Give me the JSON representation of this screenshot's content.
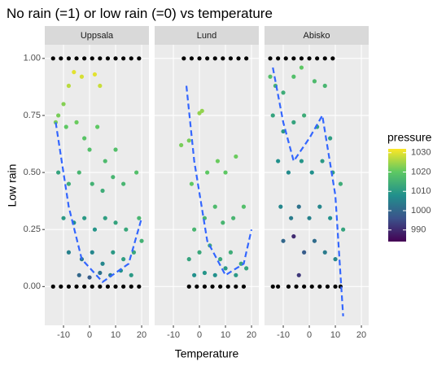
{
  "title": "No rain (=1) or low rain (=0) vs temperature",
  "x_label": "Temperature",
  "y_label": "Low rain",
  "colorbar": {
    "title": "pressure",
    "lim": [
      984,
      1032
    ],
    "ticks": [
      990,
      1000,
      1010,
      1020,
      1030
    ],
    "colors": [
      "#440154",
      "#3b528b",
      "#21908c",
      "#5dc863",
      "#fde725"
    ],
    "na_color": "#000000"
  },
  "trend_color": "#3366ff",
  "chart_data": [
    {
      "type": "scatter",
      "title": "Uppsala",
      "xlim": [
        -17.2,
        22.8
      ],
      "ylim": [
        -0.17,
        1.06
      ],
      "xticks": [
        -10,
        0,
        10,
        20
      ],
      "yticks": [
        {
          "value": 0,
          "label": "0.00"
        },
        {
          "value": 0.25,
          "label": "0.25"
        },
        {
          "value": 0.5,
          "label": "0.50"
        },
        {
          "value": 0.75,
          "label": "0.75"
        },
        {
          "value": 1,
          "label": "1.00"
        }
      ],
      "x": [
        -13,
        -12,
        -10,
        -8,
        -6,
        -3,
        2,
        4,
        -9,
        -5,
        -2,
        0,
        3,
        6,
        10,
        -12,
        -8,
        -4,
        1,
        5,
        9,
        13,
        18,
        -10,
        -6,
        -2,
        2,
        6,
        10,
        14,
        19,
        -8,
        -3,
        1,
        5,
        9,
        13,
        17,
        -4,
        0,
        4,
        8,
        12,
        16,
        20,
        -14,
        -11,
        -8,
        -5,
        -2,
        1,
        4,
        7,
        10,
        13,
        16,
        19,
        -14,
        -11,
        -8,
        -5,
        -2,
        1,
        4,
        7,
        10,
        13,
        16,
        19
      ],
      "y": [
        0.72,
        0.75,
        0.8,
        0.88,
        0.94,
        0.92,
        0.93,
        0.88,
        0.7,
        0.72,
        0.65,
        0.6,
        0.7,
        0.55,
        0.6,
        0.5,
        0.45,
        0.5,
        0.45,
        0.42,
        0.48,
        0.45,
        0.5,
        0.3,
        0.28,
        0.3,
        0.25,
        0.3,
        0.28,
        0.25,
        0.3,
        0.15,
        0.12,
        0.15,
        0.1,
        0.15,
        0.12,
        0.15,
        0.05,
        0.04,
        0.06,
        0.05,
        0.07,
        0.05,
        0.2,
        1,
        1,
        1,
        1,
        1,
        1,
        1,
        1,
        1,
        1,
        1,
        1,
        0,
        0,
        0,
        0,
        0,
        0,
        0,
        0,
        0,
        0,
        0,
        0
      ],
      "pressure": [
        1022,
        1022,
        1023,
        1027,
        1030,
        1029,
        1030,
        1028,
        1020,
        1021,
        1019,
        1018,
        1020,
        1017,
        1018,
        1012,
        1014,
        1016,
        1015,
        1014,
        1016,
        1016,
        1018,
        1010,
        1008,
        1010,
        1009,
        1011,
        1012,
        1013,
        1016,
        1005,
        1004,
        1006,
        1006,
        1010,
        1011,
        1013,
        1000,
        998,
        1002,
        1004,
        1008,
        1010,
        1015,
        null,
        null,
        null,
        null,
        null,
        null,
        null,
        null,
        null,
        null,
        null,
        null,
        null,
        null,
        null,
        null,
        null,
        null,
        null,
        null,
        null,
        null,
        null,
        null
      ],
      "trend_x": [
        -13,
        -8,
        -3,
        5,
        15,
        20
      ],
      "trend_y": [
        0.72,
        0.35,
        0.12,
        0.02,
        0.1,
        0.3
      ]
    },
    {
      "type": "scatter",
      "title": "Lund",
      "xlim": [
        -17.2,
        22.8
      ],
      "ylim": [
        -0.17,
        1.06
      ],
      "xticks": [
        -10,
        0,
        10,
        20
      ],
      "yticks": [
        0,
        0.25,
        0.5,
        0.75,
        1
      ],
      "x": [
        -7,
        -4,
        0,
        1,
        -3,
        3,
        7,
        10,
        14,
        -2,
        2,
        6,
        9,
        13,
        17,
        -4,
        0,
        4,
        8,
        12,
        16,
        -2,
        2,
        6,
        10,
        14,
        18,
        -6,
        -3,
        0,
        3,
        6,
        9,
        12,
        15,
        18,
        -4,
        -1,
        2,
        5,
        8,
        11,
        14,
        17
      ],
      "y": [
        0.62,
        0.64,
        0.76,
        0.77,
        0.45,
        0.5,
        0.55,
        0.5,
        0.57,
        0.25,
        0.3,
        0.35,
        0.28,
        0.3,
        0.35,
        0.12,
        0.15,
        0.18,
        0.12,
        0.15,
        0.1,
        0.05,
        0.06,
        0.05,
        0.08,
        0.05,
        0.08,
        1,
        1,
        1,
        1,
        1,
        1,
        1,
        1,
        1,
        0,
        0,
        0,
        0,
        0,
        0,
        0,
        0
      ],
      "pressure": [
        1022,
        1022,
        1024,
        1024,
        1020,
        1020,
        1021,
        1020,
        1021,
        1016,
        1016,
        1017,
        1016,
        1016,
        1018,
        1012,
        1013,
        1014,
        1013,
        1014,
        1013,
        1008,
        1009,
        1008,
        1010,
        1010,
        1012,
        null,
        null,
        null,
        null,
        null,
        null,
        null,
        null,
        null,
        null,
        null,
        null,
        null,
        null,
        null,
        null,
        null
      ],
      "trend_x": [
        -5,
        -2,
        3,
        10,
        17,
        20
      ],
      "trend_y": [
        0.88,
        0.55,
        0.2,
        0.05,
        0.1,
        0.25
      ]
    },
    {
      "type": "scatter",
      "title": "Abisko",
      "xlim": [
        -17.2,
        22.8
      ],
      "ylim": [
        -0.17,
        1.06
      ],
      "xticks": [
        -10,
        0,
        10,
        20
      ],
      "yticks": [
        0,
        0.25,
        0.5,
        0.75,
        1
      ],
      "x": [
        -15,
        -13,
        -10,
        -6,
        -3,
        2,
        6,
        -14,
        -10,
        -6,
        -2,
        3,
        8,
        -12,
        -8,
        -3,
        1,
        5,
        9,
        12,
        -11,
        -7,
        -4,
        0,
        4,
        8,
        13,
        -10,
        -6,
        -2,
        2,
        6,
        10,
        -4,
        -15,
        -12,
        -9,
        -6,
        -3,
        0,
        3,
        6,
        9,
        -14,
        -12,
        -8,
        -5,
        -2,
        1,
        4,
        7,
        10,
        12
      ],
      "y": [
        0.92,
        0.88,
        0.85,
        0.92,
        0.96,
        0.9,
        0.88,
        0.75,
        0.68,
        0.72,
        0.75,
        0.7,
        0.65,
        0.55,
        0.5,
        0.55,
        0.5,
        0.55,
        0.5,
        0.45,
        0.35,
        0.3,
        0.35,
        0.3,
        0.35,
        0.3,
        0.25,
        0.2,
        0.22,
        0.15,
        0.2,
        0.15,
        0.12,
        0.05,
        1,
        1,
        1,
        1,
        1,
        1,
        1,
        1,
        1,
        0,
        0,
        0,
        0,
        0,
        0,
        0,
        0,
        0,
        0
      ],
      "pressure": [
        1018,
        1016,
        1014,
        1018,
        1020,
        1017,
        1016,
        1012,
        1010,
        1012,
        1014,
        1012,
        1011,
        1008,
        1007,
        1009,
        1008,
        1010,
        1011,
        1014,
        1006,
        1004,
        1002,
        1005,
        1006,
        1008,
        1012,
        1000,
        990,
        998,
        1001,
        1004,
        1006,
        992,
        null,
        null,
        null,
        null,
        null,
        null,
        null,
        null,
        null,
        null,
        null,
        null,
        null,
        null,
        null,
        null,
        null,
        null,
        null
      ],
      "trend_x": [
        -14,
        -10,
        -6,
        0,
        5,
        10,
        13
      ],
      "trend_y": [
        0.96,
        0.72,
        0.55,
        0.65,
        0.75,
        0.4,
        -0.13
      ]
    }
  ]
}
